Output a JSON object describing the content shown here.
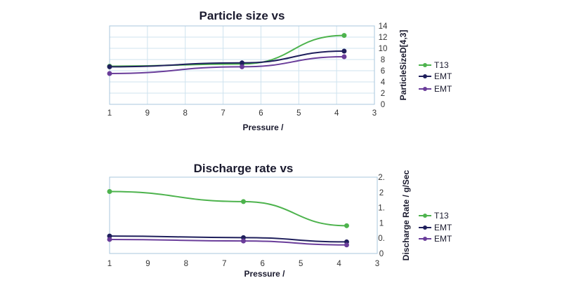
{
  "chart_data": [
    {
      "type": "line",
      "title": "Particle size vs",
      "xlabel": "Pressure /",
      "ylabel": "ParticleSizeD[4,3]",
      "x_ticks": [
        "1",
        "9",
        "8",
        "7",
        "6",
        "5",
        "4",
        "3"
      ],
      "y_ticks": [
        "0",
        "2",
        "4",
        "6",
        "8",
        "10",
        "12",
        "14"
      ],
      "xlim": [
        10,
        3
      ],
      "ylim": [
        0,
        14
      ],
      "grid": true,
      "legend": "right",
      "x": [
        10,
        6.5,
        3.8
      ],
      "series": [
        {
          "name": "T13",
          "color": "#4db34d",
          "values": [
            6.8,
            7.2,
            12.3
          ]
        },
        {
          "name": "EMT",
          "color": "#1f1f5c",
          "values": [
            6.7,
            7.4,
            9.5
          ]
        },
        {
          "name": "EMT",
          "color": "#6a3d9a",
          "values": [
            5.5,
            6.7,
            8.5
          ]
        }
      ]
    },
    {
      "type": "line",
      "title": "Discharge rate vs",
      "xlabel": "Pressure /",
      "ylabel": "Discharge Rate / g/Sec",
      "x_ticks": [
        "1",
        "9",
        "8",
        "7",
        "6",
        "5",
        "4",
        "3"
      ],
      "y_ticks": [
        "0",
        "0.",
        "1",
        "1.",
        "2",
        "2."
      ],
      "xlim": [
        10,
        3
      ],
      "ylim": [
        0,
        2.5
      ],
      "grid": false,
      "legend": "right",
      "x": [
        10,
        6.5,
        3.8
      ],
      "series": [
        {
          "name": "T13",
          "color": "#4db34d",
          "values": [
            2.03,
            1.7,
            0.91
          ]
        },
        {
          "name": "EMT",
          "color": "#1f1f5c",
          "values": [
            0.57,
            0.52,
            0.38
          ]
        },
        {
          "name": "EMT",
          "color": "#6a3d9a",
          "values": [
            0.46,
            0.41,
            0.28
          ]
        }
      ]
    }
  ]
}
